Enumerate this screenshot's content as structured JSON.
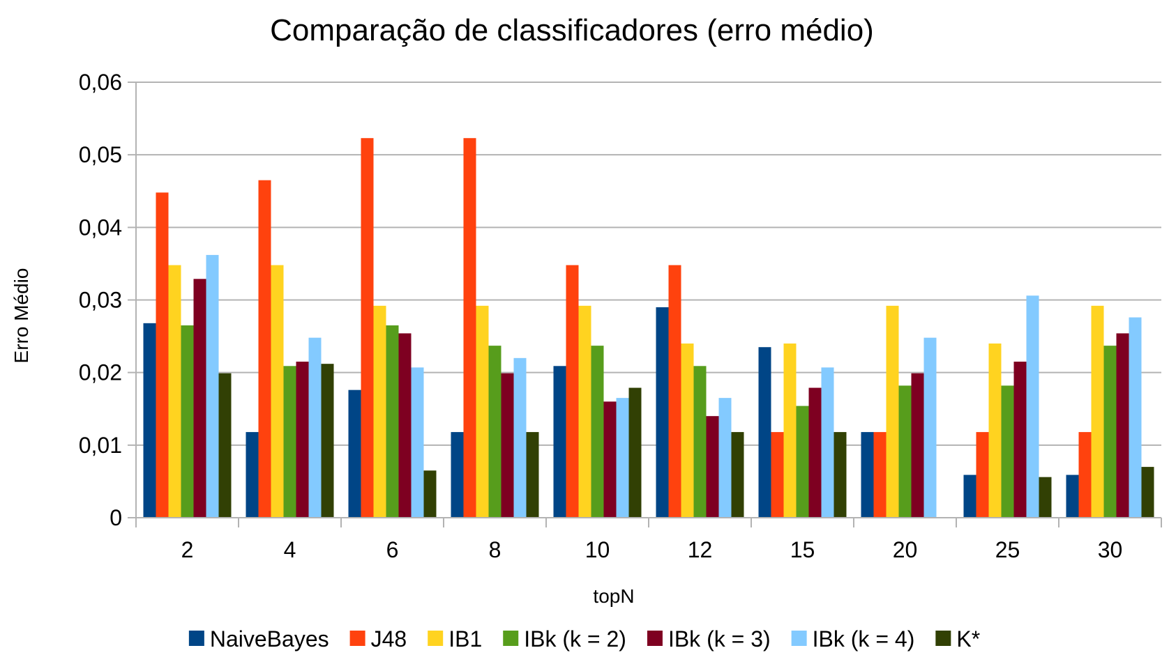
{
  "chart_data": {
    "type": "bar",
    "title": "Comparação de classificadores (erro médio)",
    "xlabel": "topN",
    "ylabel": "Erro Médio",
    "categories": [
      "2",
      "4",
      "6",
      "8",
      "10",
      "12",
      "15",
      "20",
      "25",
      "30"
    ],
    "y_ticks": [
      "0",
      "0,01",
      "0,02",
      "0,03",
      "0,04",
      "0,05",
      "0,06"
    ],
    "ylim": [
      0,
      0.06
    ],
    "grid": true,
    "legend_position": "bottom",
    "series": [
      {
        "name": "NaiveBayes",
        "color": "#004586",
        "values": [
          0.0268,
          0.0118,
          0.0176,
          0.0118,
          0.0209,
          0.029,
          0.0235,
          0.0118,
          0.0059,
          0.0059
        ]
      },
      {
        "name": "J48",
        "color": "#ff420e",
        "values": [
          0.0448,
          0.0465,
          0.0523,
          0.0523,
          0.0348,
          0.0348,
          0.0118,
          0.0118,
          0.0118,
          0.0118
        ]
      },
      {
        "name": "IB1",
        "color": "#ffd320",
        "values": [
          0.0348,
          0.0348,
          0.0292,
          0.0292,
          0.0292,
          0.024,
          0.024,
          0.0292,
          0.024,
          0.0292
        ]
      },
      {
        "name": "IBk (k = 2)",
        "color": "#579d1c",
        "values": [
          0.0265,
          0.0209,
          0.0265,
          0.0237,
          0.0237,
          0.0209,
          0.0154,
          0.0182,
          0.0182,
          0.0237
        ]
      },
      {
        "name": "IBk (k = 3)",
        "color": "#7e0021",
        "values": [
          0.0329,
          0.0215,
          0.0254,
          0.0199,
          0.016,
          0.014,
          0.0179,
          0.0199,
          0.0215,
          0.0254
        ]
      },
      {
        "name": "IBk (k = 4)",
        "color": "#83caff",
        "values": [
          0.0362,
          0.0248,
          0.0207,
          0.022,
          0.0165,
          0.0165,
          0.0207,
          0.0248,
          0.0306,
          0.0276
        ]
      },
      {
        "name": "K*",
        "color": "#314004",
        "values": [
          0.0199,
          0.0212,
          0.0065,
          0.0118,
          0.0179,
          0.0118,
          0.0118,
          0.0,
          0.0056,
          0.007
        ]
      }
    ]
  }
}
